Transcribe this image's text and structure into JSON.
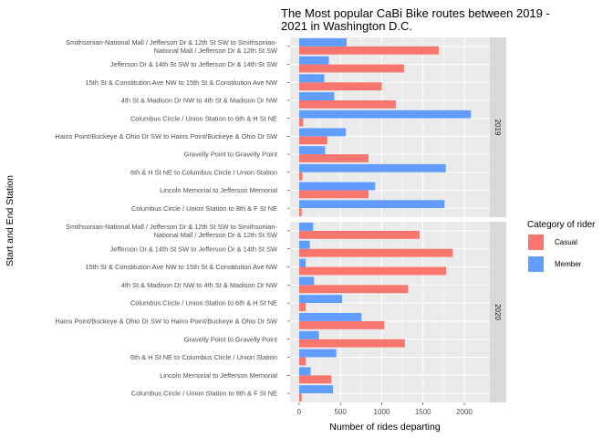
{
  "chart_data": {
    "type": "bar",
    "orientation": "horizontal",
    "title_lines": [
      "The Most popular CaBi Bike routes between 2019 -",
      "2021 in Washington D.C."
    ],
    "xlabel": "Number of rides departing",
    "ylabel": "Start and End Station",
    "xlim": [
      0,
      2200
    ],
    "xticks": [
      0,
      500,
      1000,
      1500,
      2000
    ],
    "grid": true,
    "legend": {
      "title": "Category of rider",
      "placement": "right",
      "entries": [
        {
          "name": "Casual",
          "color": "#F8766D"
        },
        {
          "name": "Member",
          "color": "#619CFF"
        }
      ]
    },
    "categories": [
      [
        "Smithsonian-National Mall / Jefferson Dr & 12th St SW to Smithsonian-",
        "National Mall / Jefferson Dr & 12th St SW"
      ],
      [
        "Jefferson Dr & 14th St SW to Jefferson Dr & 14th St SW"
      ],
      [
        "15th St & Constitution Ave NW to 15th St & Constitution Ave NW"
      ],
      [
        "4th St & Madison Dr NW to 4th St & Madison Dr NW"
      ],
      [
        "Columbus Circle / Union Station to 6th & H St NE"
      ],
      [
        "Hains Point/Buckeye & Ohio Dr SW to Hains Point/Buckeye & Ohio Dr SW"
      ],
      [
        "Gravelly Point to Gravelly Point"
      ],
      [
        "6th & H St NE to Columbus Circle / Union Station"
      ],
      [
        "Lincoln Memorial to Jefferson Memorial"
      ],
      [
        "Columbus Circle / Union Station to 8th & F St NE"
      ]
    ],
    "panels": [
      {
        "label": "2019",
        "series": [
          {
            "name": "Casual",
            "values": [
              1690,
              1270,
              1000,
              1170,
              50,
              340,
              840,
              40,
              840,
              30
            ]
          },
          {
            "name": "Member",
            "values": [
              575,
              360,
              305,
              425,
              2080,
              565,
              315,
              1775,
              920,
              1760
            ]
          }
        ]
      },
      {
        "label": "2020",
        "series": [
          {
            "name": "Casual",
            "values": [
              1460,
              1860,
              1780,
              1320,
              80,
              1030,
              1280,
              80,
              390,
              30
            ]
          },
          {
            "name": "Member",
            "values": [
              170,
              130,
              80,
              180,
              520,
              755,
              240,
              450,
              140,
              410
            ]
          }
        ]
      }
    ]
  }
}
